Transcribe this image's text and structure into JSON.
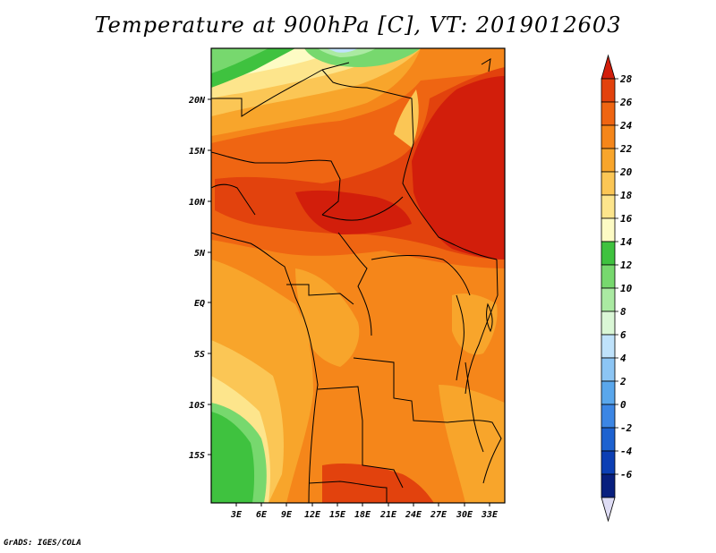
{
  "title": "Temperature at 900hPa [C], VT: 2019012603",
  "credit": "GrADS: IGES/COLA",
  "map": {
    "lat_labels": [
      "20N",
      "15N",
      "10N",
      "5N",
      "EQ",
      "5S",
      "10S",
      "15S"
    ],
    "lon_labels": [
      "3E",
      "6E",
      "9E",
      "12E",
      "15E",
      "18E",
      "21E",
      "24E",
      "27E",
      "30E",
      "33E"
    ]
  },
  "colorbar": {
    "labels": [
      "28",
      "26",
      "24",
      "22",
      "20",
      "18",
      "16",
      "14",
      "12",
      "10",
      "8",
      "6",
      "4",
      "2",
      "0",
      "-2",
      "-4",
      "-6"
    ],
    "colors": [
      "#d21e0b",
      "#e2420d",
      "#ef6512",
      "#f5861a",
      "#f8a52b",
      "#fbc655",
      "#fde58c",
      "#fdfbc4",
      "#3fc23f",
      "#77d86e",
      "#aaeaa2",
      "#daf7d6",
      "#bfe2fb",
      "#8cc5f4",
      "#5aa7ec",
      "#3c86e4",
      "#1d62d0",
      "#0c3fb4",
      "#081f7e",
      "#dedcf4"
    ]
  }
}
